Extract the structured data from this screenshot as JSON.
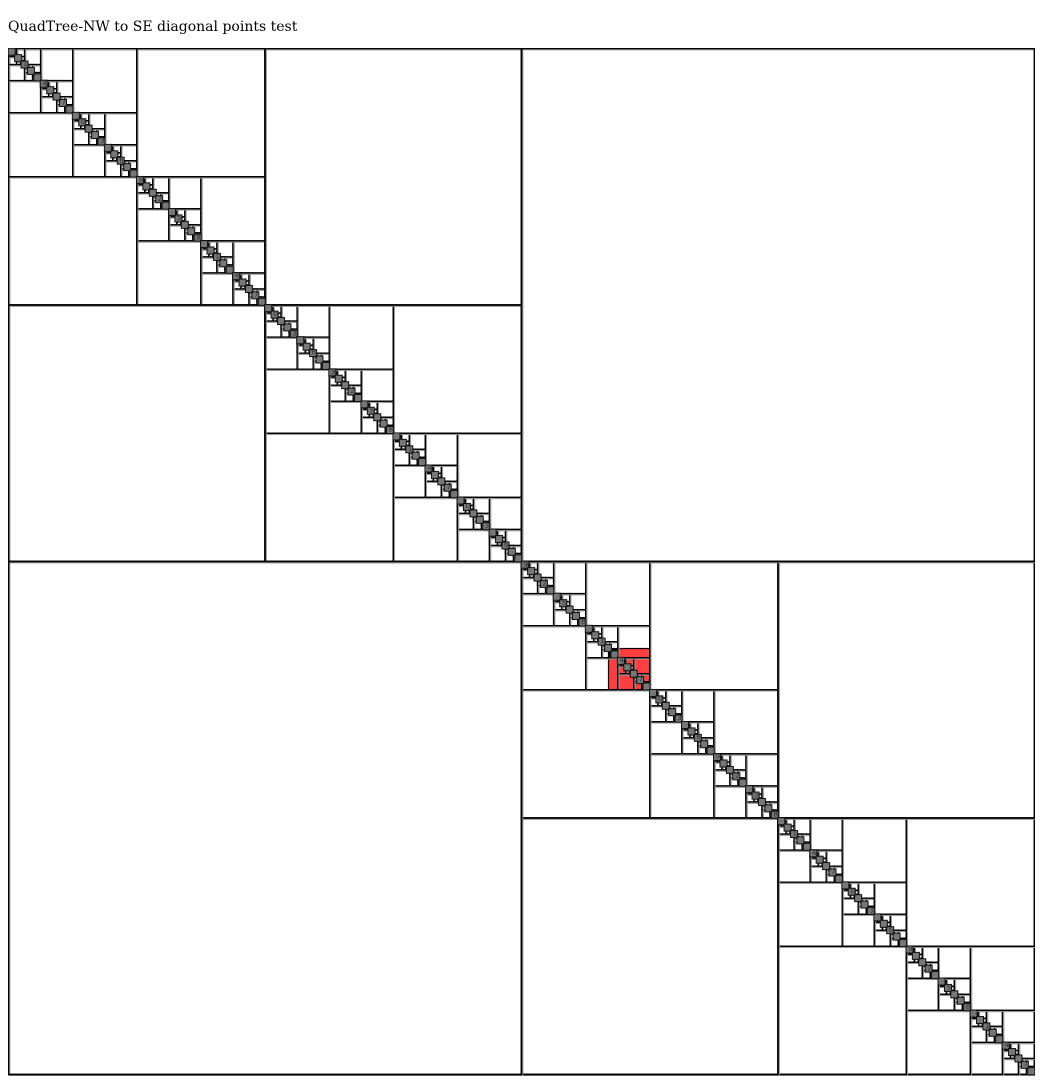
{
  "page": {
    "title": "QuadTree-NW to SE diagonal points test"
  },
  "diagram": {
    "type": "quadtree",
    "insertion": "NW to SE diagonal points",
    "highlighted_region": "block containing points near the center-right (shown in red)",
    "colors": {
      "background": "#ffffff",
      "cell_border": "#000000",
      "cell_shadow": "#9a9a9a",
      "point_fill": "#777777",
      "point_stroke": "#111111",
      "highlight": "#ff2a2a",
      "label": "#333333"
    }
  }
}
